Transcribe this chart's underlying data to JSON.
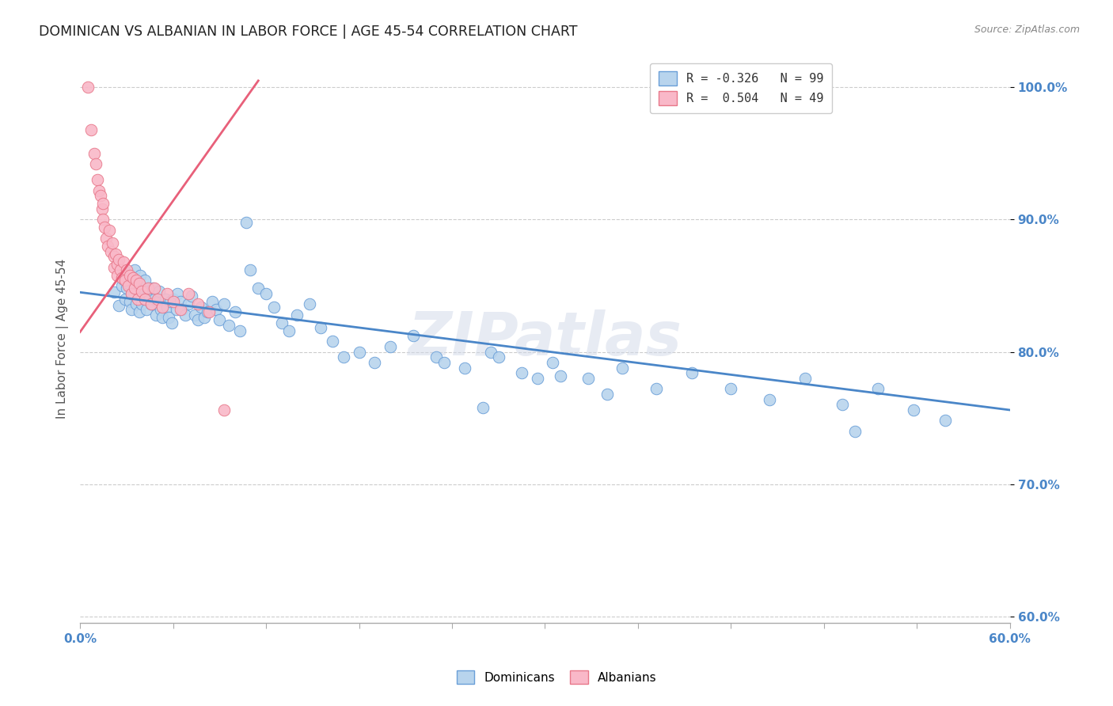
{
  "title": "DOMINICAN VS ALBANIAN IN LABOR FORCE | AGE 45-54 CORRELATION CHART",
  "source": "Source: ZipAtlas.com",
  "ylabel": "In Labor Force | Age 45-54",
  "ytick_labels": [
    "100.0%",
    "90.0%",
    "80.0%",
    "70.0%",
    "60.0%"
  ],
  "ytick_values": [
    1.0,
    0.9,
    0.8,
    0.7,
    0.6
  ],
  "xlim": [
    0.0,
    0.6
  ],
  "ylim": [
    0.595,
    1.025
  ],
  "legend_blue_r": "R = -0.326",
  "legend_blue_n": "N = 99",
  "legend_pink_r": "R =  0.504",
  "legend_pink_n": "N = 49",
  "blue_color": "#b8d4ed",
  "blue_line_color": "#4a86c8",
  "blue_edge_color": "#6a9fd8",
  "pink_color": "#f9b8c8",
  "pink_line_color": "#e8607a",
  "pink_edge_color": "#e8788a",
  "axis_label_color": "#4a86c8",
  "title_color": "#222222",
  "source_color": "#888888",
  "grid_color": "#cccccc",
  "blue_trendline_x": [
    0.0,
    0.6
  ],
  "blue_trendline_y": [
    0.845,
    0.756
  ],
  "pink_trendline_x": [
    0.0,
    0.115
  ],
  "pink_trendline_y": [
    0.815,
    1.005
  ],
  "dominicans_x": [
    0.022,
    0.025,
    0.027,
    0.028,
    0.029,
    0.03,
    0.03,
    0.031,
    0.032,
    0.033,
    0.033,
    0.034,
    0.035,
    0.036,
    0.036,
    0.037,
    0.038,
    0.038,
    0.039,
    0.04,
    0.04,
    0.041,
    0.042,
    0.042,
    0.043,
    0.044,
    0.045,
    0.046,
    0.047,
    0.048,
    0.049,
    0.05,
    0.051,
    0.052,
    0.053,
    0.055,
    0.056,
    0.057,
    0.058,
    0.059,
    0.06,
    0.062,
    0.063,
    0.065,
    0.066,
    0.068,
    0.07,
    0.072,
    0.074,
    0.076,
    0.078,
    0.08,
    0.082,
    0.085,
    0.088,
    0.09,
    0.093,
    0.096,
    0.1,
    0.103,
    0.107,
    0.11,
    0.115,
    0.12,
    0.125,
    0.13,
    0.135,
    0.14,
    0.148,
    0.155,
    0.163,
    0.17,
    0.18,
    0.19,
    0.2,
    0.215,
    0.23,
    0.248,
    0.265,
    0.285,
    0.305,
    0.328,
    0.35,
    0.372,
    0.395,
    0.42,
    0.445,
    0.468,
    0.492,
    0.515,
    0.538,
    0.558,
    0.31,
    0.34,
    0.27,
    0.295,
    0.26,
    0.235,
    0.5
  ],
  "dominicans_y": [
    0.845,
    0.835,
    0.85,
    0.855,
    0.84,
    0.86,
    0.848,
    0.852,
    0.838,
    0.844,
    0.832,
    0.856,
    0.862,
    0.848,
    0.836,
    0.852,
    0.844,
    0.83,
    0.858,
    0.842,
    0.836,
    0.848,
    0.854,
    0.84,
    0.832,
    0.846,
    0.842,
    0.836,
    0.848,
    0.84,
    0.828,
    0.838,
    0.846,
    0.832,
    0.826,
    0.84,
    0.834,
    0.826,
    0.838,
    0.822,
    0.84,
    0.832,
    0.844,
    0.838,
    0.832,
    0.828,
    0.836,
    0.842,
    0.828,
    0.824,
    0.834,
    0.826,
    0.83,
    0.838,
    0.832,
    0.824,
    0.836,
    0.82,
    0.83,
    0.816,
    0.898,
    0.862,
    0.848,
    0.844,
    0.834,
    0.822,
    0.816,
    0.828,
    0.836,
    0.818,
    0.808,
    0.796,
    0.8,
    0.792,
    0.804,
    0.812,
    0.796,
    0.788,
    0.8,
    0.784,
    0.792,
    0.78,
    0.788,
    0.772,
    0.784,
    0.772,
    0.764,
    0.78,
    0.76,
    0.772,
    0.756,
    0.748,
    0.782,
    0.768,
    0.796,
    0.78,
    0.758,
    0.792,
    0.74
  ],
  "albanians_x": [
    0.005,
    0.007,
    0.009,
    0.01,
    0.011,
    0.012,
    0.013,
    0.014,
    0.015,
    0.015,
    0.016,
    0.017,
    0.018,
    0.019,
    0.02,
    0.021,
    0.022,
    0.022,
    0.023,
    0.024,
    0.024,
    0.025,
    0.026,
    0.027,
    0.028,
    0.029,
    0.03,
    0.031,
    0.032,
    0.033,
    0.034,
    0.035,
    0.036,
    0.037,
    0.038,
    0.04,
    0.042,
    0.044,
    0.046,
    0.048,
    0.05,
    0.053,
    0.056,
    0.06,
    0.065,
    0.07,
    0.076,
    0.083,
    0.093
  ],
  "albanians_y": [
    1.0,
    0.968,
    0.95,
    0.942,
    0.93,
    0.922,
    0.918,
    0.908,
    0.912,
    0.9,
    0.894,
    0.886,
    0.88,
    0.892,
    0.876,
    0.882,
    0.872,
    0.864,
    0.874,
    0.866,
    0.858,
    0.87,
    0.862,
    0.856,
    0.868,
    0.854,
    0.862,
    0.85,
    0.858,
    0.844,
    0.856,
    0.848,
    0.854,
    0.84,
    0.852,
    0.846,
    0.84,
    0.848,
    0.836,
    0.848,
    0.84,
    0.834,
    0.844,
    0.838,
    0.832,
    0.844,
    0.836,
    0.83,
    0.756
  ]
}
